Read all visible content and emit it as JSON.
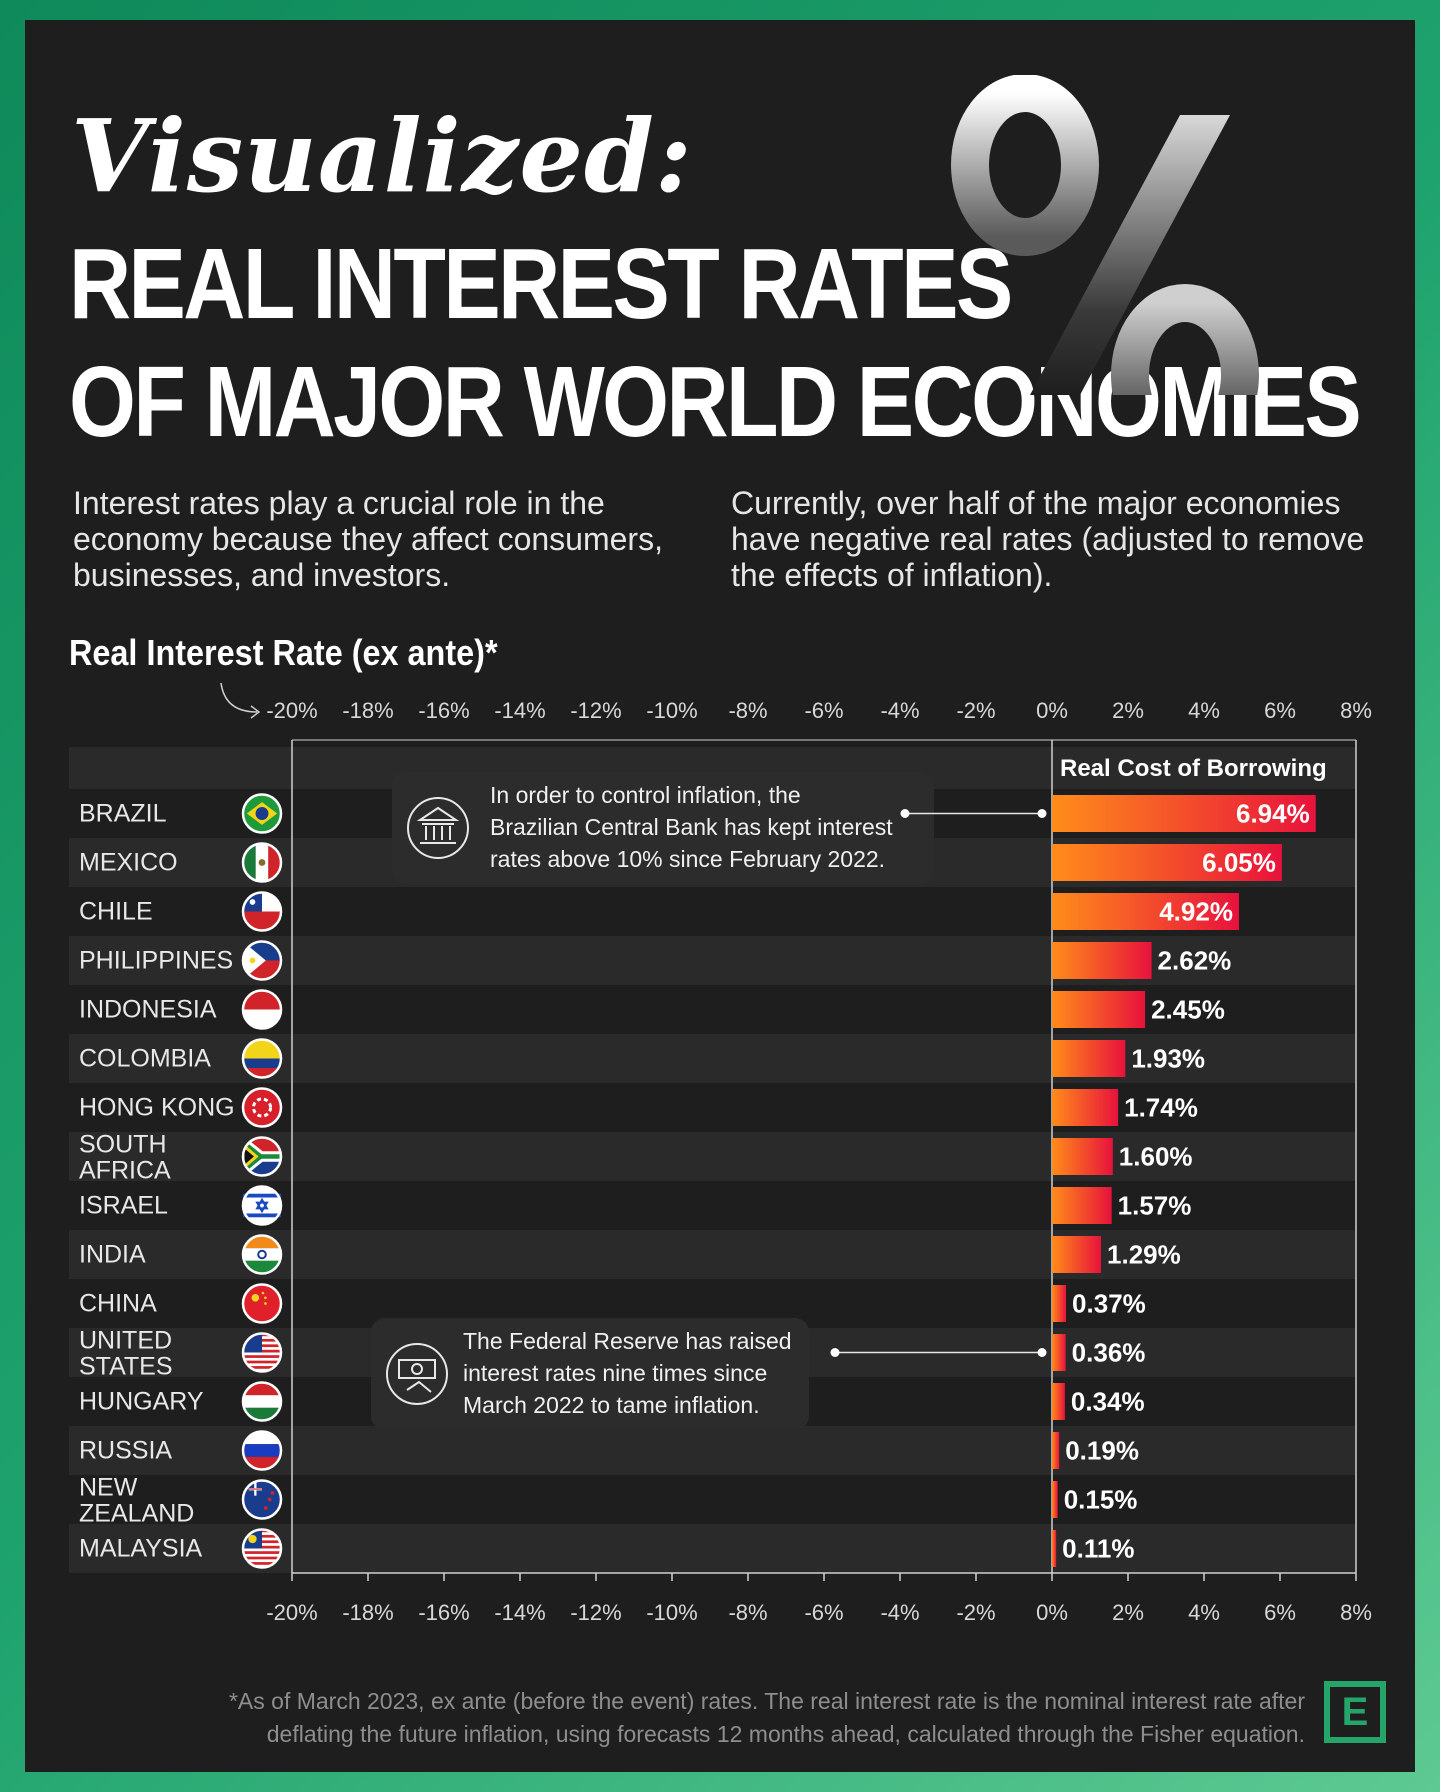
{
  "header": {
    "kicker": "Visualized:",
    "title_line1": "REAL INTEREST RATES",
    "title_line2": "OF MAJOR WORLD ECONOMIES"
  },
  "intro": {
    "left": "Interest rates play a crucial role in the economy because they affect consumers, businesses, and investors.",
    "right": "Currently, over half of the major economies have negative real rates (adjusted to remove the effects of inflation)."
  },
  "chart_data": {
    "type": "bar",
    "orientation": "horizontal",
    "title": "Real Interest Rate (ex ante)*",
    "categories": [
      "BRAZIL",
      "MEXICO",
      "CHILE",
      "PHILIPPINES",
      "INDONESIA",
      "COLOMBIA",
      "HONG KONG",
      "SOUTH AFRICA",
      "ISRAEL",
      "INDIA",
      "CHINA",
      "UNITED STATES",
      "HUNGARY",
      "RUSSIA",
      "NEW ZEALAND",
      "MALAYSIA"
    ],
    "values": [
      6.94,
      6.05,
      4.92,
      2.62,
      2.45,
      1.93,
      1.74,
      1.6,
      1.57,
      1.29,
      0.37,
      0.36,
      0.34,
      0.19,
      0.15,
      0.11
    ],
    "value_labels": [
      "6.94%",
      "6.05%",
      "4.92%",
      "2.62%",
      "2.45%",
      "1.93%",
      "1.74%",
      "1.60%",
      "1.57%",
      "1.29%",
      "0.37%",
      "0.36%",
      "0.34%",
      "0.19%",
      "0.15%",
      "0.11%"
    ],
    "xlim": [
      -20,
      8
    ],
    "x_ticks": [
      -20,
      -18,
      -16,
      -14,
      -12,
      -10,
      -8,
      -6,
      -4,
      -2,
      0,
      2,
      4,
      6,
      8
    ],
    "x_tick_labels": [
      "-20%",
      "-18%",
      "-16%",
      "-14%",
      "-12%",
      "-10%",
      "-8%",
      "-6%",
      "-4%",
      "-2%",
      "0%",
      "2%",
      "4%",
      "6%",
      "8%"
    ],
    "positive_zone_label": "Real Cost of Borrowing",
    "colors": {
      "bar_start": "#ff8c1a",
      "bar_end": "#e8123c",
      "background": "#1e1e1e",
      "row_band": "#2a2a2a"
    },
    "flags": [
      "brazil-flag-icon",
      "mexico-flag-icon",
      "chile-flag-icon",
      "philippines-flag-icon",
      "indonesia-flag-icon",
      "colombia-flag-icon",
      "hong-kong-flag-icon",
      "south-africa-flag-icon",
      "israel-flag-icon",
      "india-flag-icon",
      "china-flag-icon",
      "united-states-flag-icon",
      "hungary-flag-icon",
      "russia-flag-icon",
      "new-zealand-flag-icon",
      "malaysia-flag-icon"
    ],
    "annotations": [
      {
        "target": "BRAZIL",
        "icon": "bank-icon",
        "text": "In order to control inflation, the Brazilian Central Bank has kept interest rates above 10% since February 2022."
      },
      {
        "target": "UNITED STATES",
        "icon": "money-hand-icon",
        "text": "The Federal Reserve has raised interest rates nine times since March 2022 to tame inflation."
      }
    ]
  },
  "footnote": "*As of March 2023, ex ante (before the event) rates. The real interest rate is the nominal interest rate after deflating the future inflation, using forecasts 12 months ahead, calculated through the Fisher equation.",
  "logo": {
    "letter": "E"
  }
}
